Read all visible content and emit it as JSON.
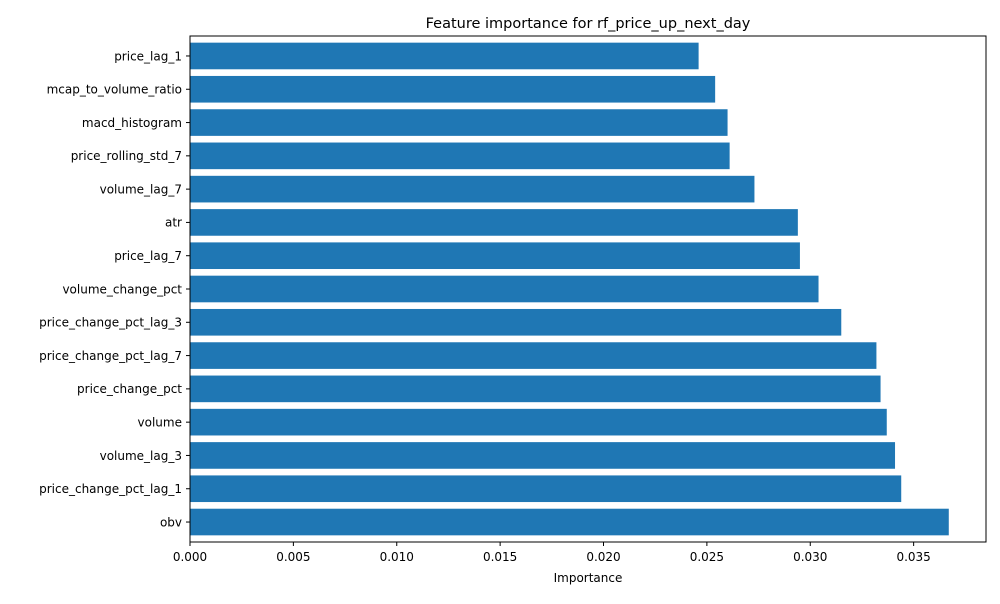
{
  "chart_data": {
    "type": "bar",
    "orientation": "horizontal",
    "title": "Feature importance for rf_price_up_next_day",
    "xlabel": "Importance",
    "ylabel": "",
    "xlim": [
      0,
      0.0385
    ],
    "xticks": [
      "0.000",
      "0.005",
      "0.010",
      "0.015",
      "0.020",
      "0.025",
      "0.030",
      "0.035"
    ],
    "categories": [
      "obv",
      "price_change_pct_lag_1",
      "volume_lag_3",
      "volume",
      "price_change_pct",
      "price_change_pct_lag_7",
      "price_change_pct_lag_3",
      "volume_change_pct",
      "price_lag_7",
      "atr",
      "volume_lag_7",
      "price_rolling_std_7",
      "macd_histogram",
      "mcap_to_volume_ratio",
      "price_lag_1"
    ],
    "values": [
      0.0367,
      0.0344,
      0.0341,
      0.0337,
      0.0334,
      0.0332,
      0.0315,
      0.0304,
      0.0295,
      0.0294,
      0.0273,
      0.0261,
      0.026,
      0.0254,
      0.0246
    ],
    "bar_color": "#1f77b4",
    "grid": false,
    "legend": "none"
  }
}
